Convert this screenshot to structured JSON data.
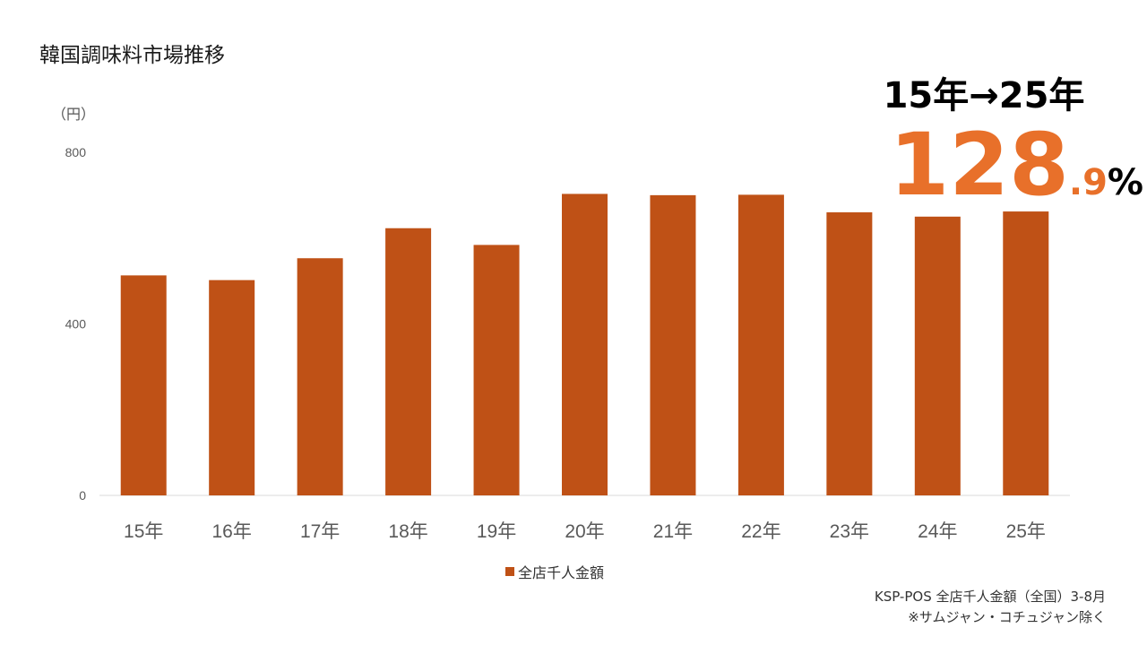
{
  "title": "韓国調味料市場推移",
  "headline": {
    "period": "15年→25年",
    "growth_integer": "128",
    "growth_decimal": ".9",
    "growth_unit": "%"
  },
  "chart_data": {
    "type": "bar",
    "ylabel": "（円）",
    "ylim": [
      0,
      800
    ],
    "yticks": [
      0,
      400,
      800
    ],
    "categories": [
      "15年",
      "16年",
      "17年",
      "18年",
      "19年",
      "20年",
      "21年",
      "22年",
      "23年",
      "24年",
      "25年"
    ],
    "series": [
      {
        "name": "全店千人金額",
        "values": [
          513,
          502,
          553,
          623,
          584,
          703,
          700,
          701,
          660,
          650,
          662
        ],
        "color": "#bf5116"
      }
    ],
    "legend_position": "bottom",
    "grid": false
  },
  "source": {
    "line1": "KSP-POS 全店千人金額（全国）3-8月",
    "line2": "※サムジャン・コチュジャン除く"
  }
}
